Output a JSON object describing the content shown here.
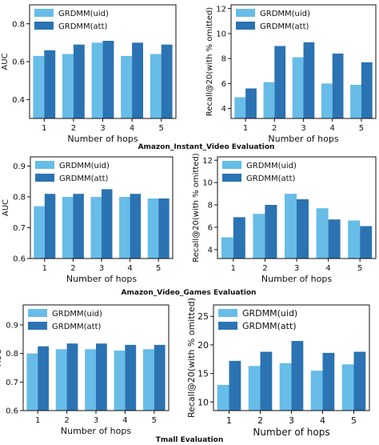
{
  "colors": {
    "uid": "#67bce8",
    "att": "#2b73b2"
  },
  "captions": {
    "amazon_instant_video": "Amazon_Instant_Video Evaluation",
    "amazon_video_games": "Amazon_Video_Games Evaluation",
    "tmall": "Tmall Evaluation"
  },
  "chart_data": [
    {
      "id": "aiv-auc",
      "type": "bar",
      "categories": [
        "1",
        "2",
        "3",
        "4",
        "5"
      ],
      "series": [
        {
          "name": "GRDMM(uid)",
          "values": [
            0.63,
            0.64,
            0.7,
            0.63,
            0.64
          ]
        },
        {
          "name": "GRDMM(att)",
          "values": [
            0.66,
            0.69,
            0.71,
            0.7,
            0.69
          ]
        }
      ],
      "xlabel": "Number of hops",
      "ylabel": "AUC",
      "ylim": [
        0.3,
        0.9
      ],
      "yticks": [
        0.4,
        0.6,
        0.8
      ],
      "ytick_labels": [
        "0.4",
        "0.6",
        "0.8"
      ],
      "legend": "top-left",
      "grid": false
    },
    {
      "id": "aiv-recall",
      "type": "bar",
      "categories": [
        "1",
        "2",
        "3",
        "4",
        "5"
      ],
      "series": [
        {
          "name": "GRDMM(uid)",
          "values": [
            4.9,
            6.1,
            8.1,
            6.0,
            5.9
          ]
        },
        {
          "name": "GRDMM(att)",
          "values": [
            5.6,
            9.0,
            9.3,
            8.4,
            7.7
          ]
        }
      ],
      "xlabel": "Number of hops",
      "ylabel": "Recall@20(with % omitted)",
      "ylim": [
        3.2,
        12.3
      ],
      "yticks": [
        4,
        6,
        8,
        10,
        12
      ],
      "ytick_labels": [
        "4",
        "6",
        "8",
        "10",
        "12"
      ],
      "legend": "top-left",
      "grid": false
    },
    {
      "id": "avg-auc",
      "type": "bar",
      "categories": [
        "1",
        "2",
        "3",
        "4",
        "5"
      ],
      "series": [
        {
          "name": "GRDMM(uid)",
          "values": [
            0.77,
            0.8,
            0.8,
            0.8,
            0.795
          ]
        },
        {
          "name": "GRDMM(att)",
          "values": [
            0.81,
            0.81,
            0.825,
            0.81,
            0.795
          ]
        }
      ],
      "xlabel": "Number of hops",
      "ylabel": "AUC",
      "ylim": [
        0.6,
        0.93
      ],
      "yticks": [
        0.6,
        0.7,
        0.8,
        0.9
      ],
      "ytick_labels": [
        "0.6",
        "0.7",
        "0.8",
        "0.9"
      ],
      "legend": "top-left",
      "grid": false
    },
    {
      "id": "avg-recall",
      "type": "bar",
      "categories": [
        "1",
        "2",
        "3",
        "4",
        "5"
      ],
      "series": [
        {
          "name": "GRDMM(uid)",
          "values": [
            5.1,
            7.2,
            9.0,
            7.7,
            6.6
          ]
        },
        {
          "name": "GRDMM(att)",
          "values": [
            6.9,
            8.0,
            8.5,
            6.7,
            6.1
          ]
        }
      ],
      "xlabel": "Number of hops",
      "ylabel": "Recall@20(with % omitted)",
      "ylim": [
        3.2,
        12.3
      ],
      "yticks": [
        4,
        6,
        8,
        10,
        12
      ],
      "ytick_labels": [
        "4",
        "6",
        "8",
        "10",
        "12"
      ],
      "legend": "top-left",
      "grid": false
    },
    {
      "id": "tmall-auc",
      "type": "bar",
      "categories": [
        "1",
        "2",
        "3",
        "4",
        "5"
      ],
      "series": [
        {
          "name": "GRDMM(uid)",
          "values": [
            0.8,
            0.815,
            0.815,
            0.81,
            0.815
          ]
        },
        {
          "name": "GRDMM(att)",
          "values": [
            0.825,
            0.835,
            0.835,
            0.83,
            0.83
          ]
        }
      ],
      "xlabel": "Number of hops",
      "ylabel": "AUC",
      "ylim": [
        0.6,
        0.97
      ],
      "yticks": [
        0.6,
        0.7,
        0.8,
        0.9
      ],
      "ytick_labels": [
        "0.6",
        "0.7",
        "0.8",
        "0.9"
      ],
      "legend": "top-left",
      "grid": false
    },
    {
      "id": "tmall-recall",
      "type": "bar",
      "categories": [
        "1",
        "2",
        "3",
        "4",
        "5"
      ],
      "series": [
        {
          "name": "GRDMM(uid)",
          "values": [
            13.0,
            16.3,
            16.8,
            15.5,
            16.6
          ]
        },
        {
          "name": "GRDMM(att)",
          "values": [
            17.2,
            18.8,
            20.7,
            18.6,
            18.8
          ]
        }
      ],
      "xlabel": "Number of hops",
      "ylabel": "Recall@20(with % omitted)",
      "ylim": [
        8.5,
        27
      ],
      "yticks": [
        10,
        15,
        20,
        25
      ],
      "ytick_labels": [
        "10",
        "15",
        "20",
        "25"
      ],
      "legend": "top-left",
      "grid": false
    }
  ]
}
